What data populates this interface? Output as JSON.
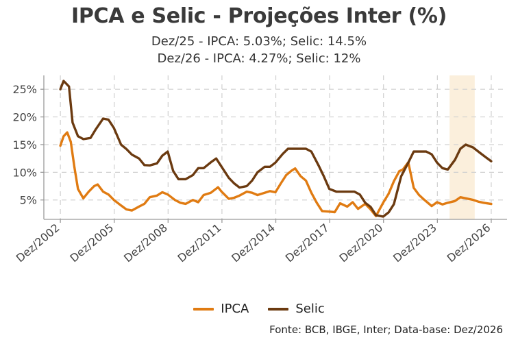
{
  "chart_data": {
    "type": "line",
    "title": "IPCA e Selic - Projeções Inter (%)",
    "subtitle_lines": [
      "Dez/25 - IPCA: 5.03%; Selic: 14.5%",
      "Dez/26 - IPCA: 4.27%; Selic: 12%"
    ],
    "source": "Fonte: BCB, IBGE, Inter; Data-base: Dez/2026",
    "x_ticks": [
      "Dez/2002",
      "Dez/2005",
      "Dez/2008",
      "Dez/2011",
      "Dez/2014",
      "Dez/2017",
      "Dez/2020",
      "Dez/2023",
      "Dez/2026"
    ],
    "x_tick_values": [
      2002.92,
      2005.92,
      2008.92,
      2011.92,
      2014.92,
      2017.92,
      2020.92,
      2023.92,
      2026.92
    ],
    "y_ticks": [
      "5%",
      "10%",
      "15%",
      "20%",
      "25%"
    ],
    "y_tick_values": [
      5,
      10,
      15,
      20,
      25
    ],
    "xlim": [
      2002.0,
      2027.8
    ],
    "ylim": [
      1.5,
      27.5
    ],
    "grid": true,
    "legend_position": "bottom",
    "projection_shade": {
      "from": 2024.6,
      "to": 2026.0,
      "color": "#fbefdc"
    },
    "series": [
      {
        "name": "IPCA",
        "color": "#e07b12",
        "x": [
          2002.92,
          2003.1,
          2003.3,
          2003.5,
          2003.7,
          2003.9,
          2004.2,
          2004.5,
          2004.8,
          2005.0,
          2005.3,
          2005.6,
          2005.9,
          2006.3,
          2006.6,
          2006.9,
          2007.3,
          2007.6,
          2007.9,
          2008.3,
          2008.6,
          2008.9,
          2009.3,
          2009.6,
          2009.9,
          2010.3,
          2010.6,
          2010.9,
          2011.3,
          2011.7,
          2011.9,
          2012.3,
          2012.6,
          2012.9,
          2013.3,
          2013.6,
          2013.9,
          2014.3,
          2014.6,
          2014.9,
          2015.2,
          2015.5,
          2015.8,
          2016.0,
          2016.3,
          2016.6,
          2016.9,
          2017.2,
          2017.5,
          2017.9,
          2018.2,
          2018.5,
          2018.9,
          2019.2,
          2019.5,
          2019.9,
          2020.2,
          2020.5,
          2020.9,
          2021.2,
          2021.5,
          2021.8,
          2022.0,
          2022.3,
          2022.6,
          2022.9,
          2023.2,
          2023.6,
          2023.9,
          2024.2,
          2024.5,
          2024.9,
          2025.2,
          2025.5,
          2025.9,
          2026.2,
          2026.5,
          2026.92
        ],
        "values": [
          14.8,
          16.5,
          17.2,
          15.5,
          11.0,
          7.0,
          5.3,
          6.5,
          7.5,
          7.8,
          6.5,
          6.0,
          5.0,
          4.0,
          3.3,
          3.1,
          3.8,
          4.3,
          5.5,
          5.8,
          6.4,
          6.0,
          5.0,
          4.5,
          4.3,
          5.0,
          4.6,
          5.9,
          6.3,
          7.3,
          6.5,
          5.2,
          5.4,
          5.8,
          6.5,
          6.3,
          5.9,
          6.3,
          6.6,
          6.4,
          8.0,
          9.5,
          10.3,
          10.7,
          9.3,
          8.5,
          6.3,
          4.5,
          3.0,
          2.9,
          2.8,
          4.4,
          3.8,
          4.6,
          3.4,
          4.3,
          3.3,
          2.1,
          4.5,
          6.1,
          8.4,
          10.2,
          10.5,
          11.8,
          7.2,
          5.9,
          5.0,
          3.9,
          4.6,
          4.2,
          4.5,
          4.8,
          5.5,
          5.3,
          5.03,
          4.7,
          4.5,
          4.27
        ]
      },
      {
        "name": "Selic",
        "color": "#6b3a10",
        "x": [
          2002.92,
          2003.1,
          2003.4,
          2003.6,
          2003.9,
          2004.2,
          2004.6,
          2004.9,
          2005.3,
          2005.6,
          2005.9,
          2006.3,
          2006.6,
          2006.9,
          2007.3,
          2007.6,
          2007.9,
          2008.3,
          2008.6,
          2008.9,
          2009.2,
          2009.5,
          2009.9,
          2010.3,
          2010.6,
          2010.9,
          2011.3,
          2011.6,
          2011.9,
          2012.3,
          2012.6,
          2012.9,
          2013.3,
          2013.6,
          2013.9,
          2014.3,
          2014.6,
          2014.9,
          2015.3,
          2015.6,
          2015.9,
          2016.3,
          2016.6,
          2016.9,
          2017.3,
          2017.6,
          2017.9,
          2018.3,
          2018.6,
          2018.9,
          2019.3,
          2019.6,
          2019.9,
          2020.2,
          2020.5,
          2020.9,
          2021.2,
          2021.5,
          2021.9,
          2022.3,
          2022.6,
          2022.9,
          2023.3,
          2023.6,
          2023.9,
          2024.2,
          2024.5,
          2024.9,
          2025.2,
          2025.5,
          2025.9,
          2026.3,
          2026.6,
          2026.92
        ],
        "values": [
          25.0,
          26.5,
          25.5,
          19.0,
          16.5,
          16.0,
          16.2,
          17.8,
          19.7,
          19.5,
          18.0,
          15.0,
          14.2,
          13.2,
          12.5,
          11.3,
          11.25,
          11.6,
          13.0,
          13.75,
          10.25,
          8.75,
          8.75,
          9.5,
          10.75,
          10.75,
          11.8,
          12.5,
          11.0,
          9.0,
          8.0,
          7.25,
          7.5,
          8.5,
          10.0,
          11.0,
          11.0,
          11.75,
          13.3,
          14.25,
          14.25,
          14.25,
          14.25,
          13.75,
          11.25,
          9.25,
          7.0,
          6.5,
          6.5,
          6.5,
          6.5,
          6.0,
          4.5,
          3.75,
          2.25,
          2.0,
          2.75,
          4.25,
          9.25,
          11.75,
          13.75,
          13.75,
          13.75,
          13.25,
          11.75,
          10.75,
          10.5,
          12.25,
          14.25,
          15.0,
          14.5,
          13.5,
          12.75,
          12.0
        ]
      }
    ]
  }
}
